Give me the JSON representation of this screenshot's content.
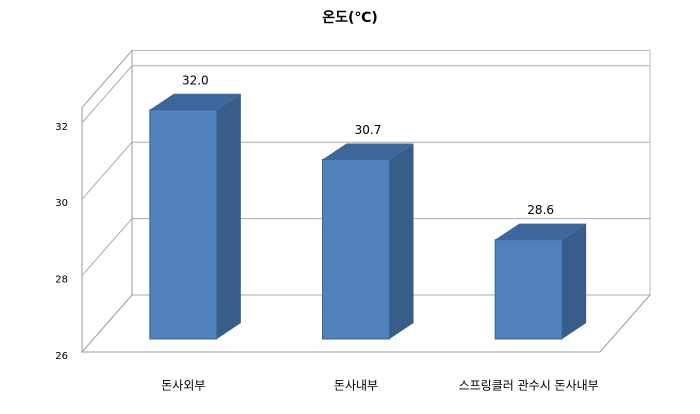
{
  "chart_data": {
    "type": "bar3d",
    "title": "온도(℃)",
    "categories": [
      "돈사외부",
      "돈사내부",
      "스프링클러 관수시 돈사내부"
    ],
    "values": [
      32.0,
      30.7,
      28.6
    ],
    "value_labels": [
      "32.0",
      "30.7",
      "28.6"
    ],
    "color": "#4f81bd",
    "ylim": [
      26,
      32.4
    ],
    "yticks": [
      26,
      28,
      30,
      32
    ],
    "grid": true
  }
}
